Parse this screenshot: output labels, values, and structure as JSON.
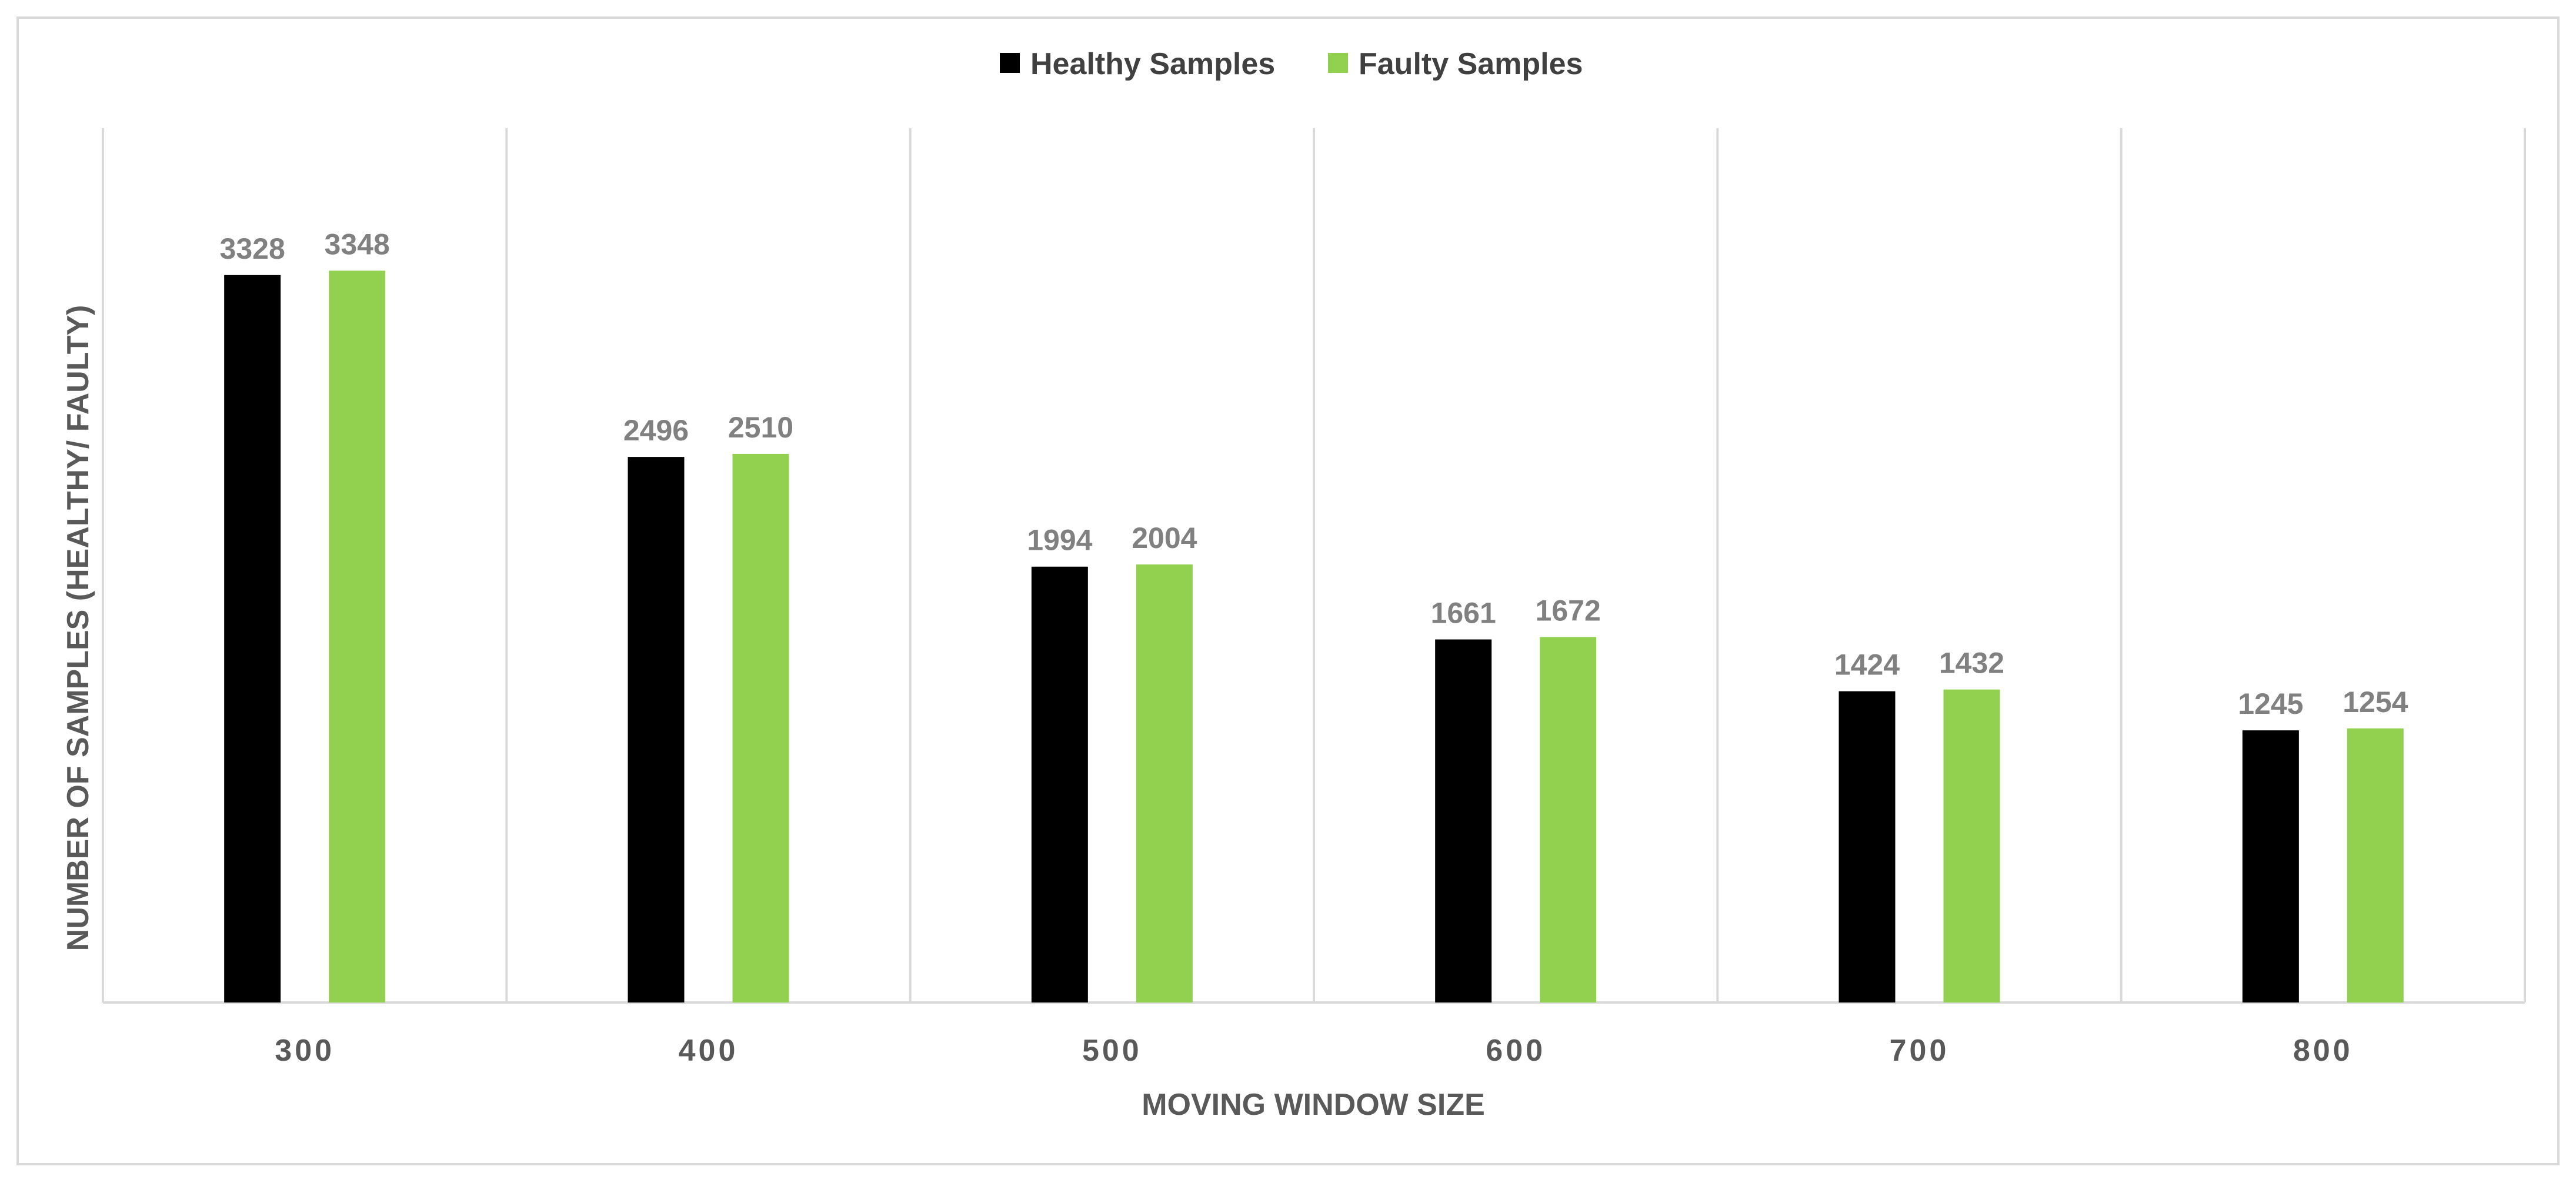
{
  "chart_data": {
    "type": "bar",
    "title": "",
    "xlabel": "MOVING WINDOW SIZE",
    "ylabel": "NUMBER OF SAMPLES (HEALTHY/ FAULTY)",
    "categories": [
      "300",
      "400",
      "500",
      "600",
      "700",
      "800"
    ],
    "series": [
      {
        "name": "Healthy Samples",
        "color": "#000000",
        "values": [
          3328,
          2496,
          1994,
          1661,
          1424,
          1245
        ]
      },
      {
        "name": "Faulty Samples",
        "color": "#92d050",
        "values": [
          3348,
          2510,
          2004,
          1672,
          1432,
          1254
        ]
      }
    ],
    "ylim": [
      0,
      4000
    ],
    "grid": "vertical category separators",
    "legend": "top-center",
    "data_labels": true
  }
}
